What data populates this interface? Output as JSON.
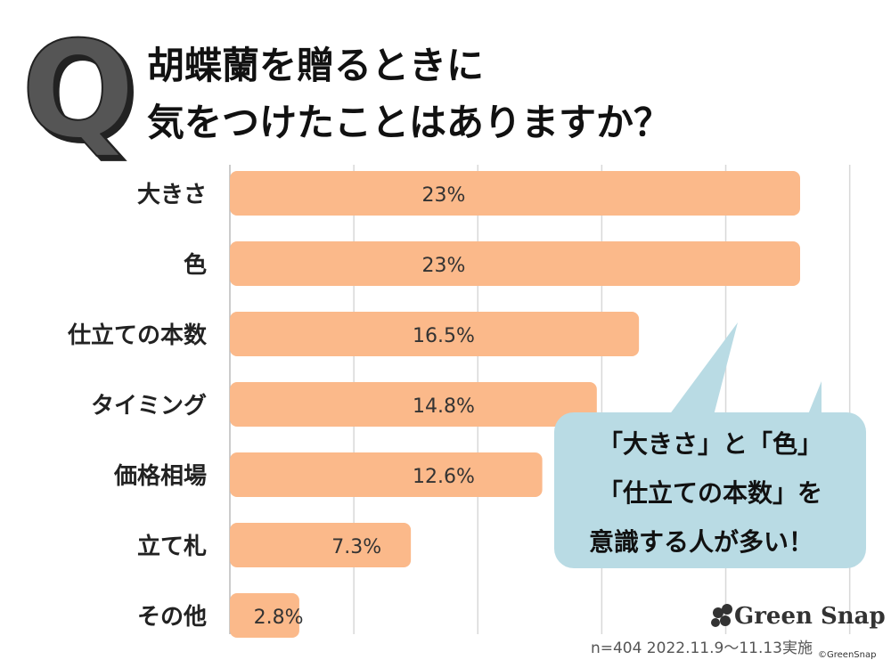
{
  "title": {
    "q_mark": "Q",
    "line1": "胡蝶蘭を贈るときに",
    "line2": "気をつけたことはありますか？"
  },
  "chart_data": {
    "type": "bar",
    "orientation": "horizontal",
    "categories": [
      "大きさ",
      "色",
      "仕立ての本数",
      "タイミング",
      "価格相場",
      "立て札",
      "その他"
    ],
    "values": [
      23,
      23,
      16.5,
      14.8,
      12.6,
      7.3,
      2.8
    ],
    "value_labels": [
      "23%",
      "23%",
      "16.5%",
      "14.8%",
      "12.6%",
      "7.3%",
      "2.8%"
    ],
    "unit": "%",
    "xlim": [
      0,
      25
    ],
    "grid": true,
    "bar_color": "#fbb98a"
  },
  "callout": {
    "lines": [
      "「大きさ」と「色」",
      "「仕立ての本数」を",
      "意識する人が多い！"
    ],
    "color": "#b9dbe4"
  },
  "footer": {
    "brand": "Green Snap",
    "note": "n=404  2022.11.9〜11.13実施",
    "copyright": "©GreenSnap"
  }
}
